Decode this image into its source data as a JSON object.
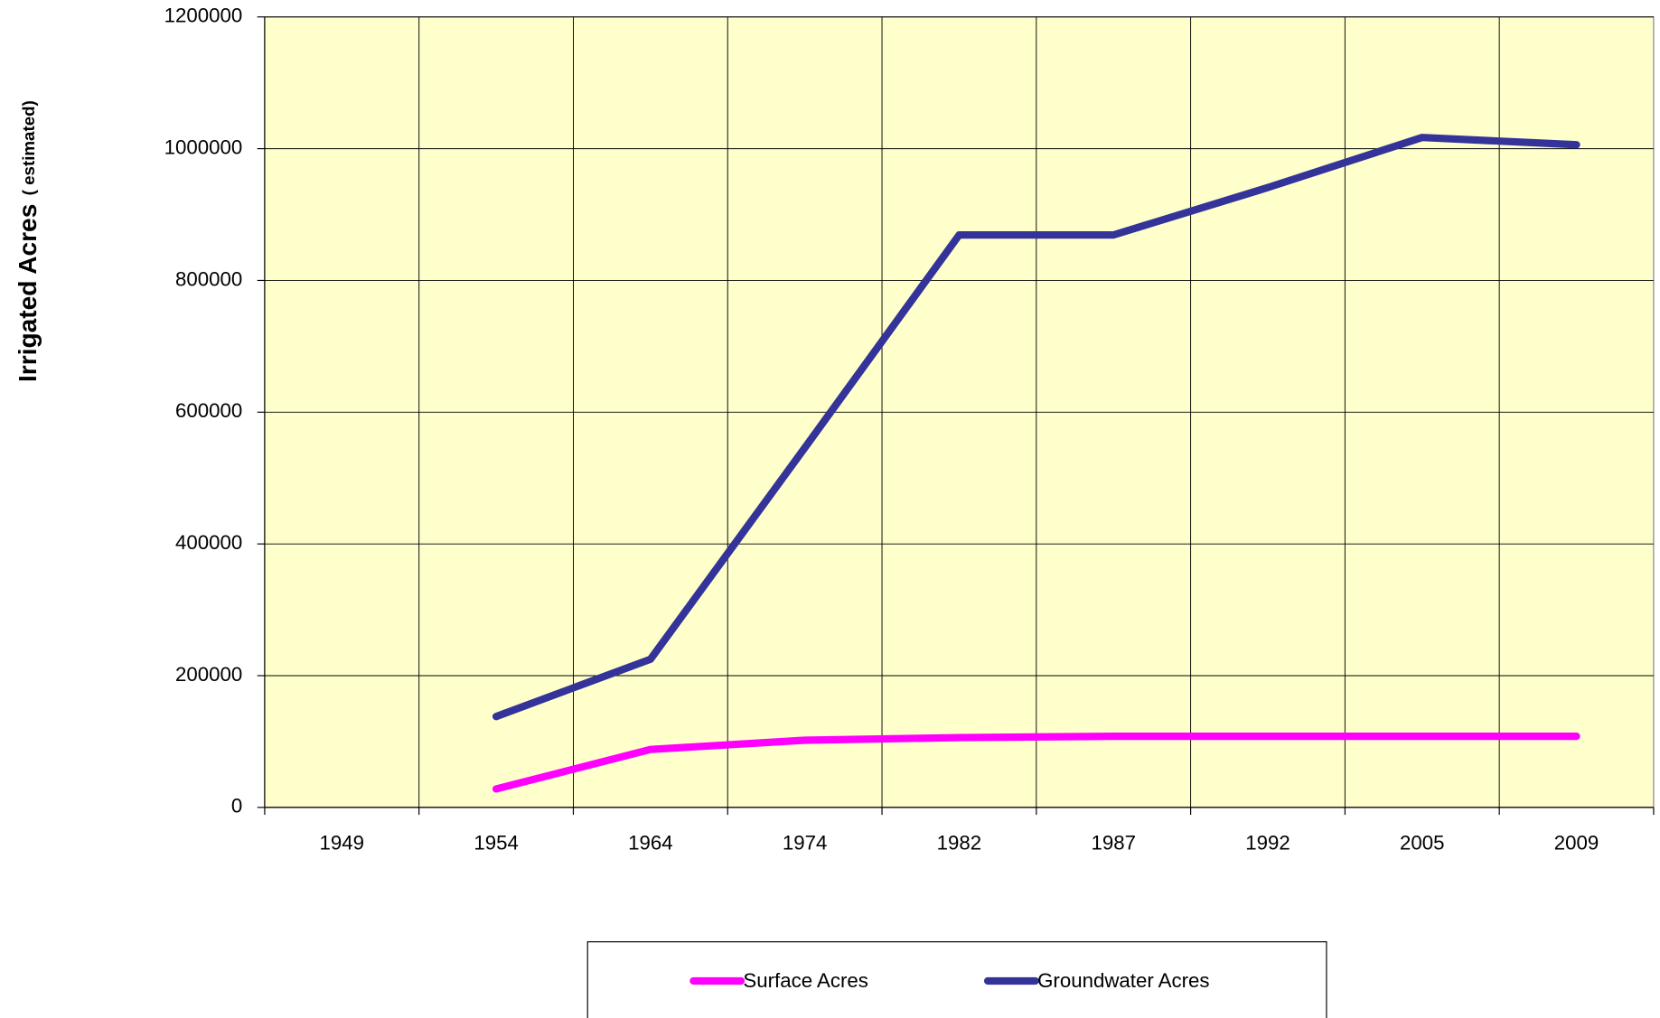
{
  "chart_data": {
    "type": "line",
    "y_label": "Irrigated Acres",
    "y_label_note": "( estimated)",
    "categories": [
      "1949",
      "1954",
      "1964",
      "1974",
      "1982",
      "1987",
      "1992",
      "2005",
      "2009"
    ],
    "series": [
      {
        "name": "Surface Acres",
        "color": "#ff00ff",
        "values": [
          null,
          28000,
          88000,
          102000,
          106000,
          108000,
          108000,
          108000,
          108000
        ]
      },
      {
        "name": "Groundwater Acres",
        "color": "#333399",
        "values": [
          null,
          138000,
          225000,
          546000,
          869000,
          869000,
          941000,
          1017000,
          1006000
        ]
      }
    ],
    "ylim": [
      0,
      1200000
    ],
    "yticks": [
      0,
      200000,
      400000,
      600000,
      800000,
      1000000,
      1200000
    ],
    "grid": true,
    "background": "#ffffcc",
    "legend": "bottom"
  }
}
